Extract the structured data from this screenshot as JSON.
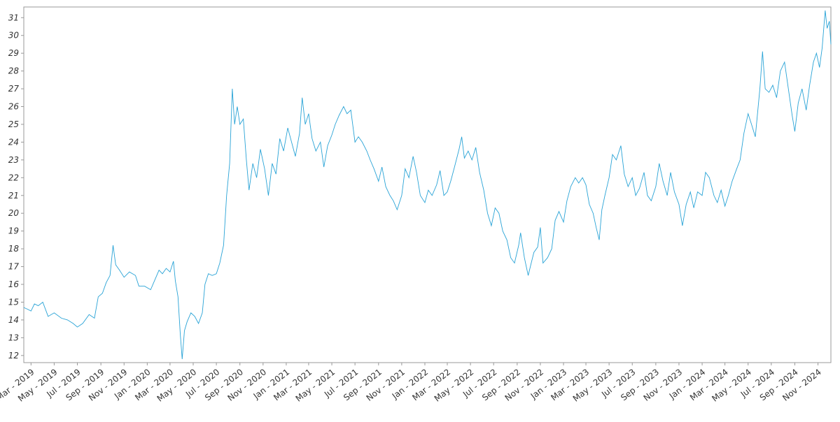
{
  "chart_data": {
    "type": "line",
    "title": "",
    "xlabel": "",
    "ylabel": "",
    "grid": false,
    "legend": "none",
    "x_range": [
      "2019-02-10",
      "2024-12-05"
    ],
    "ylim": [
      11.6,
      31.6
    ],
    "y_ticks": [
      12,
      13,
      14,
      15,
      16,
      17,
      18,
      19,
      20,
      21,
      22,
      23,
      24,
      25,
      26,
      27,
      28,
      29,
      30,
      31
    ],
    "x_ticks": [
      {
        "date": "2019-03-01",
        "label": "Mar - 2019"
      },
      {
        "date": "2019-05-01",
        "label": "May - 2019"
      },
      {
        "date": "2019-07-01",
        "label": "Jul - 2019"
      },
      {
        "date": "2019-09-01",
        "label": "Sep - 2019"
      },
      {
        "date": "2019-11-01",
        "label": "Nov - 2019"
      },
      {
        "date": "2020-01-01",
        "label": "Jan - 2020"
      },
      {
        "date": "2020-03-01",
        "label": "Mar - 2020"
      },
      {
        "date": "2020-05-01",
        "label": "May - 2020"
      },
      {
        "date": "2020-07-01",
        "label": "Jul - 2020"
      },
      {
        "date": "2020-09-01",
        "label": "Sep - 2020"
      },
      {
        "date": "2020-11-01",
        "label": "Nov - 2020"
      },
      {
        "date": "2021-01-01",
        "label": "Jan - 2021"
      },
      {
        "date": "2021-03-01",
        "label": "Mar - 2021"
      },
      {
        "date": "2021-05-01",
        "label": "May - 2021"
      },
      {
        "date": "2021-07-01",
        "label": "Jul - 2021"
      },
      {
        "date": "2021-09-01",
        "label": "Sep - 2021"
      },
      {
        "date": "2021-11-01",
        "label": "Nov - 2021"
      },
      {
        "date": "2022-01-01",
        "label": "Jan - 2022"
      },
      {
        "date": "2022-03-01",
        "label": "Mar - 2022"
      },
      {
        "date": "2022-05-01",
        "label": "May - 2022"
      },
      {
        "date": "2022-07-01",
        "label": "Jul - 2022"
      },
      {
        "date": "2022-09-01",
        "label": "Sep - 2022"
      },
      {
        "date": "2022-11-01",
        "label": "Nov - 2022"
      },
      {
        "date": "2023-01-01",
        "label": "Jan - 2023"
      },
      {
        "date": "2023-03-01",
        "label": "Mar - 2023"
      },
      {
        "date": "2023-05-01",
        "label": "May - 2023"
      },
      {
        "date": "2023-07-01",
        "label": "Jul - 2023"
      },
      {
        "date": "2023-09-01",
        "label": "Sep - 2023"
      },
      {
        "date": "2023-11-01",
        "label": "Nov - 2023"
      },
      {
        "date": "2024-01-01",
        "label": "Jan - 2024"
      },
      {
        "date": "2024-03-01",
        "label": "Mar - 2024"
      },
      {
        "date": "2024-05-01",
        "label": "May - 2024"
      },
      {
        "date": "2024-07-01",
        "label": "Jul - 2024"
      },
      {
        "date": "2024-09-01",
        "label": "Sep - 2024"
      },
      {
        "date": "2024-11-01",
        "label": "Nov - 2024"
      }
    ],
    "series": [
      {
        "color": "#29a3d6",
        "points": [
          [
            "2019-02-10",
            14.7
          ],
          [
            "2019-02-20",
            14.6
          ],
          [
            "2019-03-01",
            14.5
          ],
          [
            "2019-03-10",
            14.9
          ],
          [
            "2019-03-20",
            14.8
          ],
          [
            "2019-04-01",
            15.0
          ],
          [
            "2019-04-15",
            14.2
          ],
          [
            "2019-05-01",
            14.4
          ],
          [
            "2019-05-20",
            14.1
          ],
          [
            "2019-06-05",
            14.0
          ],
          [
            "2019-06-20",
            13.8
          ],
          [
            "2019-07-01",
            13.6
          ],
          [
            "2019-07-15",
            13.8
          ],
          [
            "2019-08-01",
            14.3
          ],
          [
            "2019-08-15",
            14.1
          ],
          [
            "2019-08-25",
            15.3
          ],
          [
            "2019-09-05",
            15.5
          ],
          [
            "2019-09-15",
            16.1
          ],
          [
            "2019-09-25",
            16.5
          ],
          [
            "2019-10-03",
            18.2
          ],
          [
            "2019-10-10",
            17.1
          ],
          [
            "2019-10-20",
            16.8
          ],
          [
            "2019-11-01",
            16.4
          ],
          [
            "2019-11-15",
            16.7
          ],
          [
            "2019-12-01",
            16.5
          ],
          [
            "2019-12-10",
            15.9
          ],
          [
            "2019-12-25",
            15.9
          ],
          [
            "2020-01-10",
            15.7
          ],
          [
            "2020-01-20",
            16.2
          ],
          [
            "2020-02-01",
            16.8
          ],
          [
            "2020-02-10",
            16.6
          ],
          [
            "2020-02-20",
            16.9
          ],
          [
            "2020-03-01",
            16.7
          ],
          [
            "2020-03-10",
            17.3
          ],
          [
            "2020-03-15",
            16.2
          ],
          [
            "2020-03-22",
            15.3
          ],
          [
            "2020-03-28",
            13.2
          ],
          [
            "2020-04-02",
            11.8
          ],
          [
            "2020-04-08",
            13.4
          ],
          [
            "2020-04-15",
            13.9
          ],
          [
            "2020-04-25",
            14.4
          ],
          [
            "2020-05-05",
            14.2
          ],
          [
            "2020-05-15",
            13.8
          ],
          [
            "2020-05-25",
            14.4
          ],
          [
            "2020-06-01",
            16.0
          ],
          [
            "2020-06-10",
            16.6
          ],
          [
            "2020-06-20",
            16.5
          ],
          [
            "2020-07-01",
            16.6
          ],
          [
            "2020-07-10",
            17.2
          ],
          [
            "2020-07-20",
            18.2
          ],
          [
            "2020-07-28",
            21.0
          ],
          [
            "2020-08-05",
            22.8
          ],
          [
            "2020-08-12",
            27.0
          ],
          [
            "2020-08-18",
            25.0
          ],
          [
            "2020-08-25",
            26.0
          ],
          [
            "2020-09-01",
            25.0
          ],
          [
            "2020-09-10",
            25.3
          ],
          [
            "2020-09-18",
            23.0
          ],
          [
            "2020-09-25",
            21.3
          ],
          [
            "2020-10-05",
            22.8
          ],
          [
            "2020-10-15",
            22.0
          ],
          [
            "2020-10-25",
            23.6
          ],
          [
            "2020-11-05",
            22.5
          ],
          [
            "2020-11-15",
            21.0
          ],
          [
            "2020-11-25",
            22.8
          ],
          [
            "2020-12-05",
            22.2
          ],
          [
            "2020-12-15",
            24.2
          ],
          [
            "2020-12-25",
            23.5
          ],
          [
            "2021-01-05",
            24.8
          ],
          [
            "2021-01-15",
            24.0
          ],
          [
            "2021-01-25",
            23.2
          ],
          [
            "2021-02-05",
            24.5
          ],
          [
            "2021-02-12",
            26.5
          ],
          [
            "2021-02-20",
            25.0
          ],
          [
            "2021-03-01",
            25.6
          ],
          [
            "2021-03-10",
            24.2
          ],
          [
            "2021-03-20",
            23.5
          ],
          [
            "2021-04-01",
            24.0
          ],
          [
            "2021-04-10",
            22.6
          ],
          [
            "2021-04-20",
            23.8
          ],
          [
            "2021-05-01",
            24.4
          ],
          [
            "2021-05-10",
            25.0
          ],
          [
            "2021-05-20",
            25.5
          ],
          [
            "2021-06-01",
            26.0
          ],
          [
            "2021-06-10",
            25.6
          ],
          [
            "2021-06-20",
            25.8
          ],
          [
            "2021-07-01",
            24.0
          ],
          [
            "2021-07-10",
            24.3
          ],
          [
            "2021-07-20",
            24.0
          ],
          [
            "2021-08-01",
            23.5
          ],
          [
            "2021-08-10",
            23.0
          ],
          [
            "2021-08-20",
            22.5
          ],
          [
            "2021-09-01",
            21.8
          ],
          [
            "2021-09-10",
            22.6
          ],
          [
            "2021-09-20",
            21.5
          ],
          [
            "2021-10-01",
            21.0
          ],
          [
            "2021-10-10",
            20.7
          ],
          [
            "2021-10-20",
            20.2
          ],
          [
            "2021-11-01",
            21.0
          ],
          [
            "2021-11-10",
            22.5
          ],
          [
            "2021-11-20",
            22.0
          ],
          [
            "2021-12-01",
            23.2
          ],
          [
            "2021-12-10",
            22.3
          ],
          [
            "2021-12-20",
            21.0
          ],
          [
            "2022-01-01",
            20.6
          ],
          [
            "2022-01-10",
            21.3
          ],
          [
            "2022-01-20",
            21.0
          ],
          [
            "2022-02-01",
            21.6
          ],
          [
            "2022-02-10",
            22.4
          ],
          [
            "2022-02-20",
            21.0
          ],
          [
            "2022-03-01",
            21.2
          ],
          [
            "2022-03-10",
            21.8
          ],
          [
            "2022-03-20",
            22.6
          ],
          [
            "2022-04-01",
            23.6
          ],
          [
            "2022-04-08",
            24.3
          ],
          [
            "2022-04-15",
            23.1
          ],
          [
            "2022-04-25",
            23.5
          ],
          [
            "2022-05-05",
            23.0
          ],
          [
            "2022-05-15",
            23.7
          ],
          [
            "2022-05-25",
            22.3
          ],
          [
            "2022-06-05",
            21.3
          ],
          [
            "2022-06-15",
            20.0
          ],
          [
            "2022-06-25",
            19.3
          ],
          [
            "2022-07-05",
            20.3
          ],
          [
            "2022-07-15",
            20.0
          ],
          [
            "2022-07-25",
            19.0
          ],
          [
            "2022-08-05",
            18.5
          ],
          [
            "2022-08-15",
            17.5
          ],
          [
            "2022-08-25",
            17.2
          ],
          [
            "2022-09-05",
            18.2
          ],
          [
            "2022-09-10",
            18.9
          ],
          [
            "2022-09-20",
            17.5
          ],
          [
            "2022-09-30",
            16.5
          ],
          [
            "2022-10-08",
            17.2
          ],
          [
            "2022-10-15",
            17.8
          ],
          [
            "2022-10-25",
            18.1
          ],
          [
            "2022-11-01",
            19.2
          ],
          [
            "2022-11-08",
            17.2
          ],
          [
            "2022-11-20",
            17.5
          ],
          [
            "2022-12-01",
            18.0
          ],
          [
            "2022-12-10",
            19.6
          ],
          [
            "2022-12-20",
            20.1
          ],
          [
            "2023-01-01",
            19.5
          ],
          [
            "2023-01-10",
            20.7
          ],
          [
            "2023-01-20",
            21.5
          ],
          [
            "2023-02-01",
            22.0
          ],
          [
            "2023-02-10",
            21.7
          ],
          [
            "2023-02-20",
            22.0
          ],
          [
            "2023-03-01",
            21.6
          ],
          [
            "2023-03-10",
            20.5
          ],
          [
            "2023-03-20",
            20.0
          ],
          [
            "2023-03-28",
            19.2
          ],
          [
            "2023-04-05",
            18.5
          ],
          [
            "2023-04-12",
            20.2
          ],
          [
            "2023-04-20",
            21.0
          ],
          [
            "2023-05-01",
            22.0
          ],
          [
            "2023-05-10",
            23.3
          ],
          [
            "2023-05-20",
            23.0
          ],
          [
            "2023-06-01",
            23.8
          ],
          [
            "2023-06-10",
            22.2
          ],
          [
            "2023-06-20",
            21.5
          ],
          [
            "2023-07-01",
            22.0
          ],
          [
            "2023-07-10",
            21.0
          ],
          [
            "2023-07-20",
            21.4
          ],
          [
            "2023-08-01",
            22.3
          ],
          [
            "2023-08-10",
            21.0
          ],
          [
            "2023-08-20",
            20.7
          ],
          [
            "2023-09-01",
            21.5
          ],
          [
            "2023-09-10",
            22.8
          ],
          [
            "2023-09-20",
            21.8
          ],
          [
            "2023-10-01",
            21.0
          ],
          [
            "2023-10-10",
            22.3
          ],
          [
            "2023-10-20",
            21.2
          ],
          [
            "2023-11-01",
            20.5
          ],
          [
            "2023-11-10",
            19.3
          ],
          [
            "2023-11-20",
            20.5
          ],
          [
            "2023-12-01",
            21.2
          ],
          [
            "2023-12-10",
            20.3
          ],
          [
            "2023-12-20",
            21.2
          ],
          [
            "2024-01-01",
            21.0
          ],
          [
            "2024-01-10",
            22.3
          ],
          [
            "2024-01-20",
            22.0
          ],
          [
            "2024-02-01",
            21.0
          ],
          [
            "2024-02-10",
            20.6
          ],
          [
            "2024-02-20",
            21.3
          ],
          [
            "2024-03-01",
            20.4
          ],
          [
            "2024-03-10",
            21.0
          ],
          [
            "2024-03-20",
            21.8
          ],
          [
            "2024-04-01",
            22.5
          ],
          [
            "2024-04-10",
            23.0
          ],
          [
            "2024-04-20",
            24.5
          ],
          [
            "2024-05-01",
            25.6
          ],
          [
            "2024-05-10",
            25.0
          ],
          [
            "2024-05-20",
            24.3
          ],
          [
            "2024-06-01",
            27.0
          ],
          [
            "2024-06-08",
            29.1
          ],
          [
            "2024-06-15",
            27.0
          ],
          [
            "2024-06-25",
            26.8
          ],
          [
            "2024-07-05",
            27.2
          ],
          [
            "2024-07-15",
            26.5
          ],
          [
            "2024-07-25",
            28.0
          ],
          [
            "2024-08-05",
            28.5
          ],
          [
            "2024-08-15",
            27.0
          ],
          [
            "2024-08-25",
            25.5
          ],
          [
            "2024-09-01",
            24.6
          ],
          [
            "2024-09-10",
            26.2
          ],
          [
            "2024-09-20",
            27.0
          ],
          [
            "2024-10-01",
            25.8
          ],
          [
            "2024-10-10",
            27.2
          ],
          [
            "2024-10-20",
            28.5
          ],
          [
            "2024-10-28",
            29.0
          ],
          [
            "2024-11-05",
            28.2
          ],
          [
            "2024-11-12",
            29.3
          ],
          [
            "2024-11-20",
            31.4
          ],
          [
            "2024-11-25",
            30.4
          ],
          [
            "2024-12-01",
            30.8
          ],
          [
            "2024-12-05",
            29.5
          ]
        ]
      }
    ]
  }
}
